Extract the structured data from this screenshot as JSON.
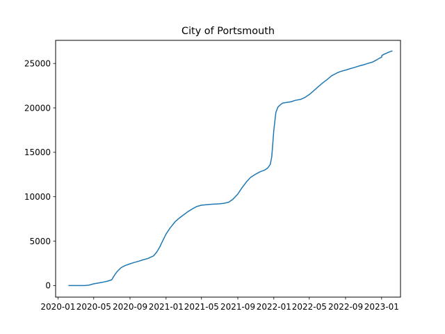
{
  "chart_data": {
    "type": "line",
    "title": "City of Portsmouth",
    "xlabel": "",
    "ylabel": "",
    "x_axis": "date",
    "xlim": [
      "2019-12-24",
      "2023-03-06"
    ],
    "ylim": [
      -1300,
      27600
    ],
    "grid": false,
    "x_ticks": [
      "2020-01",
      "2020-05",
      "2020-09",
      "2021-01",
      "2021-05",
      "2021-09",
      "2022-01",
      "2022-05",
      "2022-09",
      "2023-01"
    ],
    "x_tick_dates": [
      "2020-01-01",
      "2020-05-01",
      "2020-09-01",
      "2021-01-01",
      "2021-05-01",
      "2021-09-01",
      "2022-01-01",
      "2022-05-01",
      "2022-09-01",
      "2023-01-01"
    ],
    "y_ticks": [
      0,
      5000,
      10000,
      15000,
      20000,
      25000
    ],
    "series": [
      {
        "color": "#1f77b4",
        "x": [
          "2020-02-07",
          "2020-03-01",
          "2020-04-01",
          "2020-04-15",
          "2020-05-01",
          "2020-05-15",
          "2020-06-01",
          "2020-06-15",
          "2020-07-01",
          "2020-07-10",
          "2020-07-20",
          "2020-08-01",
          "2020-08-15",
          "2020-09-01",
          "2020-09-15",
          "2020-10-01",
          "2020-10-15",
          "2020-11-01",
          "2020-11-10",
          "2020-11-20",
          "2020-12-01",
          "2020-12-10",
          "2020-12-20",
          "2021-01-01",
          "2021-01-15",
          "2021-02-01",
          "2021-02-15",
          "2021-03-01",
          "2021-03-15",
          "2021-04-01",
          "2021-04-15",
          "2021-05-01",
          "2021-06-01",
          "2021-07-01",
          "2021-07-15",
          "2021-08-01",
          "2021-08-15",
          "2021-09-01",
          "2021-09-15",
          "2021-10-01",
          "2021-10-15",
          "2021-11-01",
          "2021-11-15",
          "2021-12-01",
          "2021-12-10",
          "2021-12-15",
          "2021-12-20",
          "2021-12-25",
          "2022-01-01",
          "2022-01-08",
          "2022-01-15",
          "2022-01-25",
          "2022-02-01",
          "2022-02-15",
          "2022-03-01",
          "2022-03-15",
          "2022-04-01",
          "2022-04-15",
          "2022-05-01",
          "2022-05-15",
          "2022-06-01",
          "2022-06-15",
          "2022-07-01",
          "2022-07-15",
          "2022-08-01",
          "2022-08-15",
          "2022-09-01",
          "2022-09-15",
          "2022-10-01",
          "2022-10-15",
          "2022-11-01",
          "2022-11-15",
          "2022-12-01",
          "2022-12-15",
          "2022-12-28",
          "2023-01-01",
          "2023-01-02",
          "2023-01-10",
          "2023-01-20",
          "2023-01-28",
          "2023-02-05"
        ],
        "y": [
          0,
          0,
          0,
          50,
          200,
          280,
          380,
          480,
          650,
          1150,
          1600,
          2000,
          2250,
          2450,
          2600,
          2750,
          2900,
          3050,
          3200,
          3350,
          3800,
          4300,
          5000,
          5800,
          6500,
          7200,
          7600,
          7950,
          8300,
          8650,
          8900,
          9050,
          9150,
          9200,
          9250,
          9380,
          9700,
          10300,
          11000,
          11700,
          12200,
          12550,
          12800,
          13000,
          13200,
          13400,
          13650,
          14500,
          17500,
          19500,
          20100,
          20400,
          20550,
          20620,
          20700,
          20850,
          20950,
          21150,
          21500,
          21900,
          22400,
          22800,
          23200,
          23600,
          23900,
          24100,
          24250,
          24400,
          24550,
          24700,
          24850,
          25000,
          25150,
          25400,
          25650,
          25700,
          25900,
          26050,
          26200,
          26300,
          26400
        ]
      }
    ]
  }
}
